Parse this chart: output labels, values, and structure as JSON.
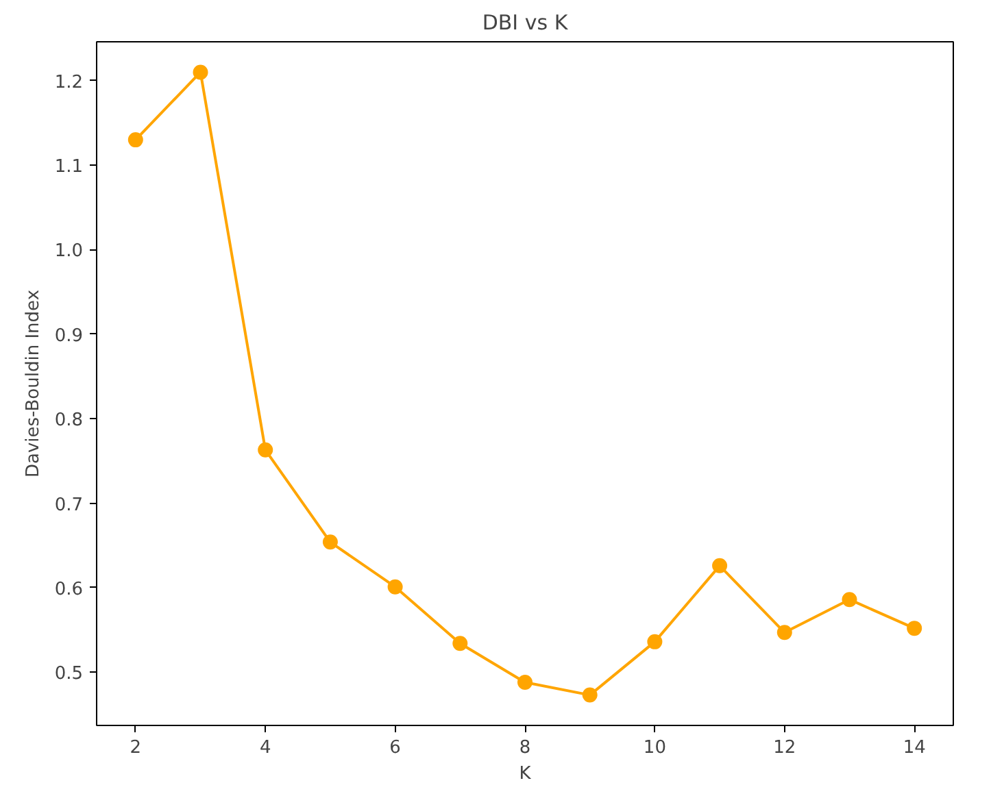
{
  "chart_data": {
    "type": "line",
    "title": "DBI vs K",
    "xlabel": "K",
    "ylabel": "Davies-Bouldin Index",
    "x": [
      2,
      3,
      4,
      5,
      6,
      7,
      8,
      9,
      10,
      11,
      12,
      13,
      14
    ],
    "series": [
      {
        "color": "#ffa500",
        "values": [
          1.13,
          1.21,
          0.763,
          0.654,
          0.601,
          0.534,
          0.488,
          0.473,
          0.536,
          0.626,
          0.547,
          0.586,
          0.552
        ]
      }
    ],
    "xlim": [
      1.4,
      14.6
    ],
    "ylim": [
      0.437,
      1.246
    ],
    "xticks": [
      2,
      4,
      6,
      8,
      10,
      12,
      14
    ],
    "yticks": [
      {
        "value": 0.5,
        "label": "0.5"
      },
      {
        "value": 0.6,
        "label": "0.6"
      },
      {
        "value": 0.7,
        "label": "0.7"
      },
      {
        "value": 0.8,
        "label": "0.8"
      },
      {
        "value": 0.9,
        "label": "0.9"
      },
      {
        "value": 1.0,
        "label": "1.0"
      },
      {
        "value": 1.1,
        "label": "1.1"
      },
      {
        "value": 1.2,
        "label": "1.2"
      }
    ],
    "marker": "circle"
  }
}
